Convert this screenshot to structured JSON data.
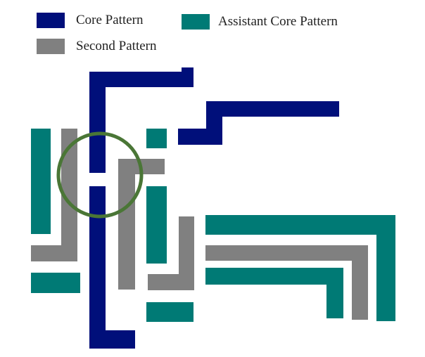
{
  "legend": {
    "core": {
      "label": "Core Pattern",
      "color": "#000f7a"
    },
    "assistant": {
      "label": "Assistant Core Pattern",
      "color": "#007a75"
    },
    "second": {
      "label": "Second Pattern",
      "color": "#808080"
    }
  },
  "highlight": {
    "color": "#4a7636"
  }
}
